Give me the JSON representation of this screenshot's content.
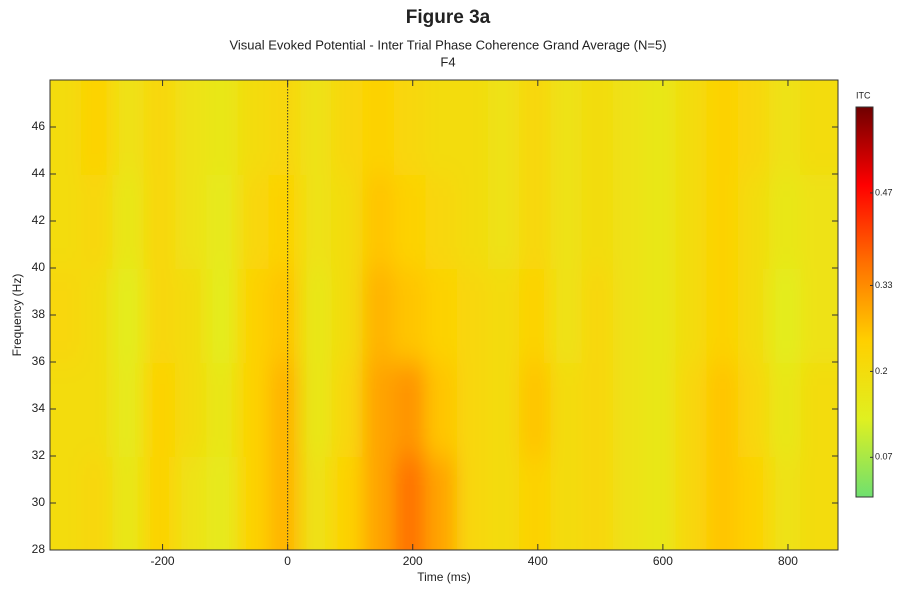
{
  "chart_data": {
    "type": "heatmap",
    "title": "Figure 3a",
    "subtitle": "Visual Evoked Potential - Inter Trial Phase Coherence Grand Average (N=5)",
    "channel": "F4",
    "xlabel": "Time (ms)",
    "ylabel": "Frequency (Hz)",
    "colorbar_label": "ITC",
    "x": [
      -355,
      -305,
      -255,
      -205,
      -155,
      -105,
      -55,
      -5,
      45,
      95,
      145,
      195,
      245,
      295,
      345,
      395,
      445,
      495,
      545,
      595,
      645,
      695,
      745,
      795,
      845
    ],
    "y": [
      30,
      34,
      38,
      42,
      46
    ],
    "z": [
      [
        0.2,
        0.22,
        0.16,
        0.24,
        0.18,
        0.15,
        0.24,
        0.28,
        0.18,
        0.24,
        0.3,
        0.36,
        0.3,
        0.22,
        0.2,
        0.24,
        0.2,
        0.22,
        0.18,
        0.16,
        0.22,
        0.26,
        0.24,
        0.18,
        0.2
      ],
      [
        0.2,
        0.2,
        0.15,
        0.24,
        0.2,
        0.16,
        0.24,
        0.28,
        0.16,
        0.22,
        0.3,
        0.32,
        0.26,
        0.22,
        0.2,
        0.26,
        0.2,
        0.22,
        0.18,
        0.16,
        0.22,
        0.26,
        0.22,
        0.16,
        0.2
      ],
      [
        0.22,
        0.2,
        0.14,
        0.22,
        0.2,
        0.14,
        0.24,
        0.26,
        0.16,
        0.2,
        0.28,
        0.26,
        0.24,
        0.22,
        0.2,
        0.24,
        0.18,
        0.22,
        0.18,
        0.16,
        0.2,
        0.24,
        0.2,
        0.14,
        0.18
      ],
      [
        0.2,
        0.22,
        0.16,
        0.22,
        0.18,
        0.15,
        0.22,
        0.24,
        0.18,
        0.2,
        0.26,
        0.24,
        0.22,
        0.2,
        0.18,
        0.22,
        0.18,
        0.2,
        0.18,
        0.16,
        0.2,
        0.24,
        0.2,
        0.16,
        0.18
      ],
      [
        0.2,
        0.24,
        0.18,
        0.22,
        0.18,
        0.16,
        0.2,
        0.22,
        0.18,
        0.22,
        0.24,
        0.22,
        0.2,
        0.2,
        0.18,
        0.22,
        0.18,
        0.2,
        0.18,
        0.16,
        0.2,
        0.24,
        0.22,
        0.18,
        0.2
      ]
    ],
    "xlim": [
      -380,
      880
    ],
    "xticks": [
      -200,
      0,
      200,
      400,
      600,
      800
    ],
    "ylim": [
      28,
      48
    ],
    "yticks": [
      28,
      30,
      32,
      34,
      36,
      38,
      40,
      42,
      44,
      46
    ],
    "clim": [
      0.01,
      0.6
    ],
    "cticks": [
      0.07,
      0.2,
      0.33,
      0.47
    ],
    "colormap": [
      "#6fe06f",
      "#e0f020",
      "#ffd000",
      "#ff7000",
      "#ff0000",
      "#700000"
    ],
    "vline": 0
  }
}
